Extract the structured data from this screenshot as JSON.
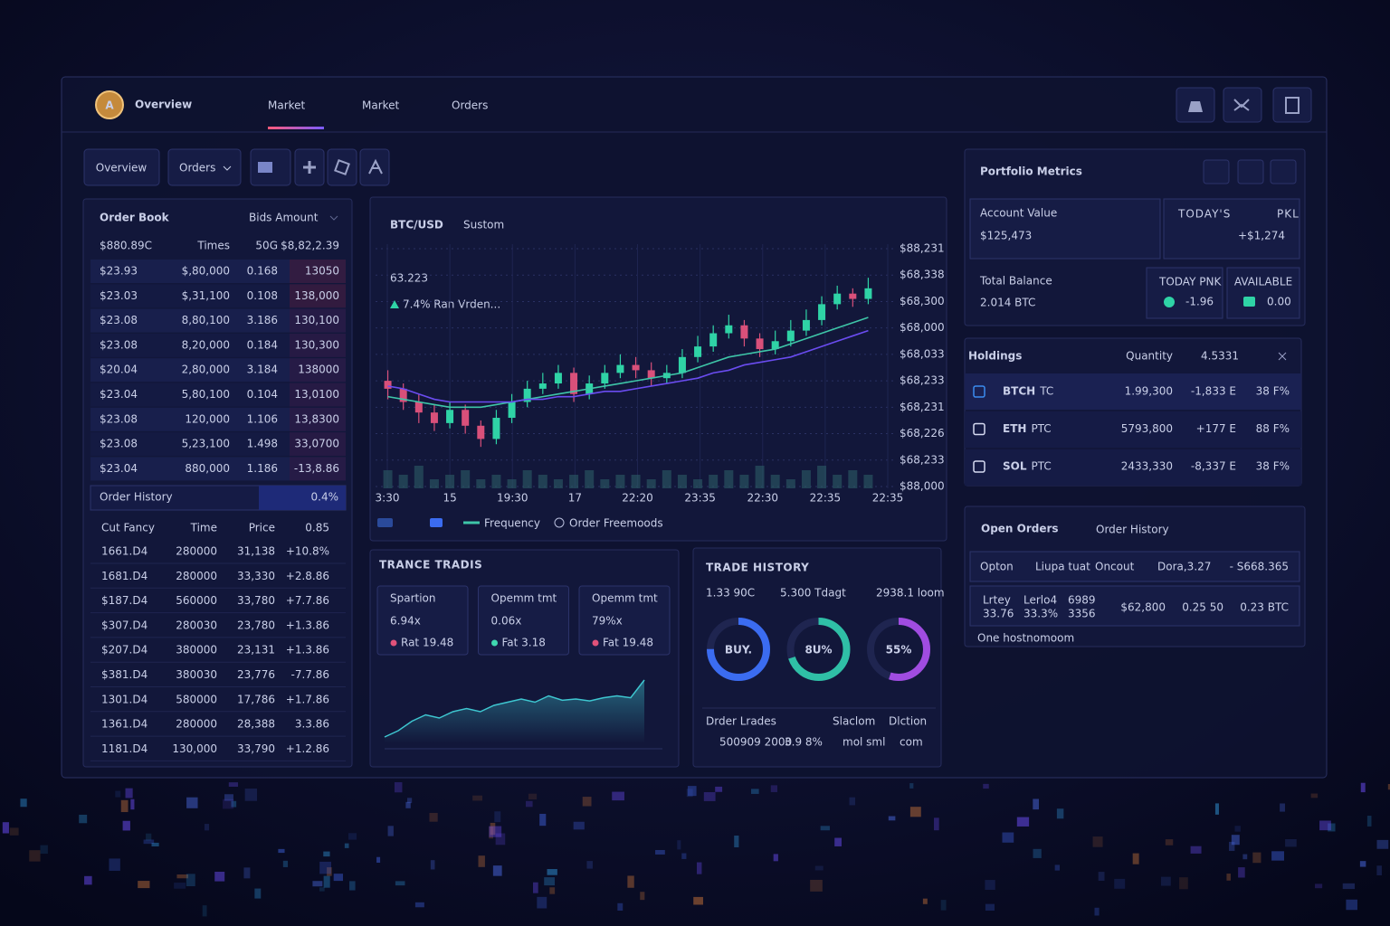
{
  "nav": {
    "logo": "A",
    "brand": "Overview",
    "tabs": [
      "Market",
      "Market",
      "Orders"
    ]
  },
  "toolbar": {
    "buttons": [
      "Overview",
      "Orders"
    ]
  },
  "order_book": {
    "title": "Order Book",
    "filter": "Bids Amount",
    "columns": [
      "$880.89C",
      "Times",
      "50G",
      "$8,82,2.39"
    ],
    "rows": [
      {
        "cells": [
          "$23.93",
          "$,80,000",
          "0.168",
          "13050"
        ],
        "color": "#e8677f"
      },
      {
        "cells": [
          "$23.03",
          "$,31,100",
          "0.108",
          "138,000"
        ],
        "color": "#e8677f"
      },
      {
        "cells": [
          "$23.08",
          "8,80,100",
          "3.186",
          "130,100"
        ],
        "color": "#3fd8b0"
      },
      {
        "cells": [
          "$23.08",
          "8,20,000",
          "0.184",
          "130,300"
        ],
        "color": "#3fd8b0"
      },
      {
        "cells": [
          "$20.04",
          "2,80,000",
          "3.184",
          "138000"
        ],
        "color": "#3fd8b0"
      },
      {
        "cells": [
          "$23.04",
          "5,80,100",
          "0.104",
          "13,0100"
        ],
        "color": "#3fd8b0"
      },
      {
        "cells": [
          "$23.08",
          "120,000",
          "1.106",
          "13,8300"
        ],
        "color": "#3fd8b0"
      },
      {
        "cells": [
          "$23.08",
          "5,23,100",
          "1.498",
          "33,0700"
        ],
        "color": "#3fd8b0"
      },
      {
        "cells": [
          "$23.04",
          "880,000",
          "1.186",
          "-13,8.86"
        ],
        "color": "#3fd8b0"
      }
    ]
  },
  "order_history": {
    "title": "Order History",
    "value": "0.4%",
    "columns": [
      "Cut Fancy",
      "Time",
      "Price",
      "0.85"
    ],
    "rows": [
      [
        "1661.D4",
        "280000",
        "31,138",
        "+10.8%"
      ],
      [
        "1681.D4",
        "280000",
        "33,330",
        "+2.8.86"
      ],
      [
        "$187.D4",
        "560000",
        "33,780",
        "+7.7.86"
      ],
      [
        "$307.D4",
        "280030",
        "23,780",
        "+1.3.86"
      ],
      [
        "$207.D4",
        "380000",
        "23,131",
        "+1.3.86"
      ],
      [
        "$381.D4",
        "380030",
        "23,776",
        "-7.7.86"
      ],
      [
        "1301.D4",
        "580000",
        "17,786",
        "+1.7.86"
      ],
      [
        "1361.D4",
        "280000",
        "28,388",
        "3.3.86"
      ],
      [
        "1181.D4",
        "130,000",
        "33,790",
        "+1.2.86"
      ]
    ]
  },
  "price_chart": {
    "type": "candlestick",
    "title": "BTC/USD",
    "subtitle": "Sustom",
    "price": "63.223",
    "change": "7.4% Ran Vrden...",
    "ylim": [
      0,
      9
    ],
    "yticks": [
      {
        "value": 0,
        "label": "$88,000"
      },
      {
        "value": 1,
        "label": "$68,233"
      },
      {
        "value": 2,
        "label": "$68,226"
      },
      {
        "value": 3,
        "label": "$68,231"
      },
      {
        "value": 4,
        "label": "$68,233"
      },
      {
        "value": 5,
        "label": "$68,033"
      },
      {
        "value": 6,
        "label": "$68,000"
      },
      {
        "value": 7,
        "label": "$68,300"
      },
      {
        "value": 8,
        "label": "$68,338"
      },
      {
        "value": 9,
        "label": "$88,231"
      }
    ],
    "xticks": [
      "3:30",
      "15",
      "19:30",
      "17",
      "22:20",
      "23:35",
      "22:30",
      "22:35",
      "22:35"
    ],
    "open": [
      4.0,
      3.7,
      3.2,
      2.8,
      2.4,
      2.9,
      2.3,
      1.8,
      2.6,
      3.2,
      3.7,
      3.9,
      4.3,
      3.5,
      3.9,
      4.3,
      4.6,
      4.4,
      4.1,
      4.3,
      4.9,
      5.3,
      5.8,
      6.1,
      5.6,
      5.2,
      5.5,
      5.9,
      6.3,
      6.9,
      7.3,
      7.1
    ],
    "close": [
      3.7,
      3.2,
      2.8,
      2.4,
      2.9,
      2.3,
      1.8,
      2.6,
      3.2,
      3.7,
      3.9,
      4.3,
      3.5,
      3.9,
      4.3,
      4.6,
      4.4,
      4.1,
      4.3,
      4.9,
      5.3,
      5.8,
      6.1,
      5.6,
      5.2,
      5.5,
      5.9,
      6.3,
      6.9,
      7.3,
      7.1,
      7.5
    ],
    "high": [
      4.4,
      3.9,
      3.5,
      3.1,
      3.2,
      3.1,
      2.5,
      2.9,
      3.5,
      4.0,
      4.3,
      4.6,
      4.5,
      4.2,
      4.6,
      5.0,
      4.9,
      4.7,
      4.6,
      5.2,
      5.7,
      6.1,
      6.5,
      6.3,
      5.8,
      5.9,
      6.3,
      6.7,
      7.2,
      7.6,
      7.5,
      7.9
    ],
    "low": [
      3.3,
      2.9,
      2.4,
      2.1,
      2.2,
      2.0,
      1.5,
      1.6,
      2.4,
      3.0,
      3.5,
      3.7,
      3.2,
      3.3,
      3.7,
      4.1,
      4.1,
      3.8,
      3.9,
      4.1,
      4.7,
      5.1,
      5.6,
      5.3,
      4.9,
      5.0,
      5.3,
      5.7,
      6.1,
      6.7,
      6.8,
      6.9
    ],
    "volume": [
      4,
      3,
      5,
      2,
      3,
      4,
      2,
      3,
      2,
      4,
      3,
      2,
      3,
      4,
      2,
      3,
      3,
      2,
      4,
      3,
      2,
      3,
      4,
      3,
      5,
      3,
      2,
      4,
      5,
      3,
      4,
      3
    ],
    "ma_fast": {
      "color": "#3ec6a8",
      "values": [
        3.4,
        3.3,
        3.2,
        3.1,
        3.0,
        3.0,
        3.0,
        3.1,
        3.2,
        3.3,
        3.4,
        3.5,
        3.6,
        3.7,
        3.8,
        3.9,
        4.0,
        4.1,
        4.2,
        4.3,
        4.5,
        4.7,
        4.9,
        5.0,
        5.1,
        5.2,
        5.4,
        5.6,
        5.8,
        6.0,
        6.2,
        6.4
      ]
    },
    "ma_slow": {
      "color": "#6a4cf0",
      "values": [
        3.8,
        3.7,
        3.5,
        3.3,
        3.2,
        3.2,
        3.2,
        3.2,
        3.2,
        3.3,
        3.3,
        3.4,
        3.4,
        3.5,
        3.6,
        3.6,
        3.7,
        3.8,
        3.9,
        4.0,
        4.1,
        4.3,
        4.4,
        4.6,
        4.7,
        4.8,
        4.9,
        5.1,
        5.3,
        5.5,
        5.7,
        5.9
      ]
    },
    "up_color": "#2fd3a6",
    "down_color": "#d9507a",
    "legend": [
      "Frequency",
      "Order Freemoods"
    ]
  },
  "trance_tradis": {
    "title": "TRANCE TRADIS",
    "stats": [
      {
        "label": "Spartion",
        "value": "6.94x",
        "note": "Rat 19.48",
        "color": "#e0527a"
      },
      {
        "label": "Opemm tmt",
        "value": "0.06x",
        "note": "Fat 3.18",
        "color": "#3fd8b0"
      },
      {
        "label": "Opemm tmt",
        "value": "79%x",
        "note": "Fat 19.48",
        "color": "#e0527a"
      }
    ],
    "trend": {
      "type": "area",
      "ylim": [
        0,
        10
      ],
      "color": "#3ec6d0",
      "values": [
        1,
        2,
        3.5,
        4.5,
        4,
        5,
        5.5,
        5,
        6,
        6.5,
        7,
        6.5,
        7.5,
        6.8,
        7,
        6.7,
        7.2,
        7.5,
        7.2,
        10
      ]
    }
  },
  "trade_history": {
    "title": "TRADE HISTORY",
    "filters": [
      "1.33 90C",
      "5.300 Tdagt",
      "2938.1 loom"
    ],
    "donuts": [
      {
        "label": "BUY.",
        "value": 75,
        "color": "#3b6cf0"
      },
      {
        "label": "8U%",
        "value": 70,
        "color": "#2fbfa6"
      },
      {
        "label": "55%",
        "value": 55,
        "color": "#a04ce0"
      }
    ],
    "footer_columns": [
      "Drder Lrades",
      "Slaclom",
      "Dlction"
    ],
    "footer_values": [
      "500909 2000",
      "3.9 8%",
      "mol sml",
      "com"
    ]
  },
  "portfolio": {
    "title": "Portfolio Metrics",
    "account_label": "Account Value",
    "account_value": "$125,473",
    "today_label": "TODAY'S",
    "pnl_label": "PKL",
    "today_value": "+$1,274",
    "balance_label": "Total Balance",
    "balance_value": "2.014 BTC",
    "pnk_label": "TODAY PNK",
    "pnk_value": "-1.96",
    "available_label": "AVAILABLE",
    "available_value": "0.00"
  },
  "holdings": {
    "title": "Holdings",
    "quantity_label": "Quantity",
    "quantity_value": "4.5331",
    "rows": [
      {
        "symbol": "BTCH",
        "pair": "TC",
        "quantity": "1.99,300",
        "change": "-1,833 E",
        "share": "38 F%"
      },
      {
        "symbol": "ETH",
        "pair": "PTC",
        "quantity": "5793,800",
        "change": "+177 E",
        "share": "88 F%"
      },
      {
        "symbol": "SOL",
        "pair": "PTC",
        "quantity": "2433,330",
        "change": "-8,337 E",
        "share": "38 F%"
      }
    ]
  },
  "open_orders": {
    "tabs": [
      "Open Orders",
      "Order History"
    ],
    "columns": [
      "Opton",
      "Liupa tuat",
      "Oncout",
      "Dora,3.27",
      "- S668.365"
    ],
    "row": {
      "labels": [
        "Lrtey",
        "Lerlo4",
        "6989"
      ],
      "sublabels": [
        "33.76",
        "33.3%",
        "3356"
      ],
      "price": "$62,800",
      "amount": "0.25 50",
      "total": "0.23 BTC"
    },
    "footer": "One hostnomoom"
  }
}
